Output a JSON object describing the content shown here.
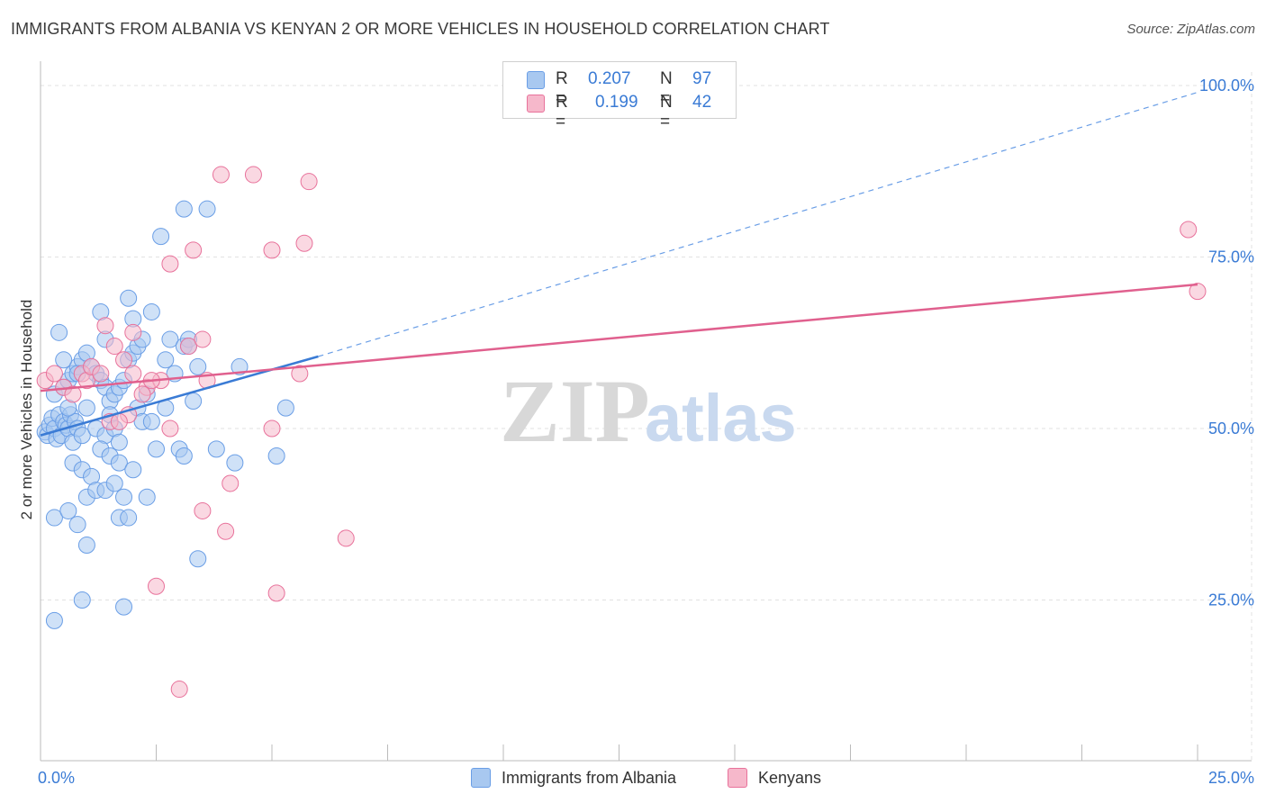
{
  "title": "IMMIGRANTS FROM ALBANIA VS KENYAN 2 OR MORE VEHICLES IN HOUSEHOLD CORRELATION CHART",
  "source": "Source: ZipAtlas.com",
  "watermark": {
    "zip": "ZIP",
    "atlas": "atlas"
  },
  "stats": [
    {
      "r_label": "R =",
      "r_value": "0.207",
      "n_label": "N =",
      "n_value": "97",
      "color": "#a8c8f0"
    },
    {
      "r_label": "R =",
      "r_value": "0.199",
      "n_label": "N =",
      "n_value": "42",
      "color": "#f6b8cb"
    }
  ],
  "legend": [
    {
      "label": "Immigrants from Albania",
      "color": "#a8c8f0"
    },
    {
      "label": "Kenyans",
      "color": "#f6b8cb"
    }
  ],
  "chart_data": {
    "type": "scatter",
    "title": "IMMIGRANTS FROM ALBANIA VS KENYAN 2 OR MORE VEHICLES IN HOUSEHOLD CORRELATION CHART",
    "xlabel": "",
    "ylabel": "2 or more Vehicles in Household",
    "xlim": [
      0,
      25
    ],
    "ylim": [
      0,
      100
    ],
    "x_tick_labels": [
      "0.0%",
      "25.0%"
    ],
    "y_ticks": [
      25,
      50,
      75,
      100
    ],
    "y_tick_labels": [
      "25.0%",
      "50.0%",
      "75.0%",
      "100.0%"
    ],
    "grid": true,
    "series": [
      {
        "name": "Immigrants from Albania",
        "color": "#6a9ee6",
        "fill": "#a8c8f0",
        "trend": {
          "x0": 0,
          "y0": 49.0,
          "x1": 6.0,
          "y1": 60.5,
          "dashed_to": [
            25,
            99.0
          ]
        },
        "points": [
          [
            0.1,
            49.5
          ],
          [
            0.15,
            49
          ],
          [
            0.2,
            50.5
          ],
          [
            0.25,
            51.5
          ],
          [
            0.3,
            50
          ],
          [
            0.35,
            48.5
          ],
          [
            0.4,
            52
          ],
          [
            0.45,
            49
          ],
          [
            0.5,
            51
          ],
          [
            0.55,
            50.5
          ],
          [
            0.6,
            50
          ],
          [
            0.65,
            52
          ],
          [
            0.7,
            48
          ],
          [
            0.75,
            51
          ],
          [
            0.8,
            50
          ],
          [
            0.3,
            55
          ],
          [
            0.4,
            64
          ],
          [
            0.5,
            56
          ],
          [
            0.6,
            57
          ],
          [
            0.7,
            58
          ],
          [
            0.8,
            59
          ],
          [
            0.9,
            60
          ],
          [
            1.0,
            61
          ],
          [
            1.1,
            59
          ],
          [
            1.2,
            58
          ],
          [
            1.3,
            57
          ],
          [
            1.4,
            56
          ],
          [
            1.5,
            54
          ],
          [
            1.6,
            55
          ],
          [
            1.7,
            56
          ],
          [
            1.8,
            57
          ],
          [
            1.9,
            60
          ],
          [
            2.0,
            61
          ],
          [
            2.1,
            62
          ],
          [
            2.2,
            63
          ],
          [
            1.3,
            67
          ],
          [
            1.9,
            69
          ],
          [
            2.4,
            67
          ],
          [
            2.0,
            66
          ],
          [
            2.7,
            60
          ],
          [
            2.8,
            63
          ],
          [
            3.1,
            62
          ],
          [
            3.2,
            63
          ],
          [
            2.9,
            58
          ],
          [
            3.4,
            59
          ],
          [
            4.3,
            59
          ],
          [
            0.6,
            53
          ],
          [
            1.0,
            53
          ],
          [
            1.5,
            52
          ],
          [
            2.1,
            53
          ],
          [
            0.9,
            49
          ],
          [
            1.2,
            50
          ],
          [
            1.4,
            49
          ],
          [
            1.6,
            50
          ],
          [
            1.7,
            48
          ],
          [
            2.2,
            51
          ],
          [
            2.4,
            51
          ],
          [
            0.7,
            45
          ],
          [
            0.9,
            44
          ],
          [
            1.1,
            43
          ],
          [
            1.3,
            47
          ],
          [
            1.5,
            46
          ],
          [
            1.7,
            45
          ],
          [
            2.0,
            44
          ],
          [
            2.5,
            47
          ],
          [
            3.0,
            47
          ],
          [
            3.1,
            46
          ],
          [
            3.8,
            47
          ],
          [
            5.1,
            46
          ],
          [
            1.0,
            40
          ],
          [
            1.2,
            41
          ],
          [
            1.4,
            41
          ],
          [
            1.6,
            42
          ],
          [
            1.8,
            40
          ],
          [
            2.3,
            40
          ],
          [
            0.3,
            37
          ],
          [
            0.6,
            38
          ],
          [
            0.8,
            36
          ],
          [
            1.0,
            33
          ],
          [
            1.7,
            37
          ],
          [
            1.9,
            37
          ],
          [
            3.4,
            31
          ],
          [
            0.9,
            25
          ],
          [
            1.8,
            24
          ],
          [
            0.3,
            22
          ],
          [
            2.6,
            78
          ],
          [
            3.1,
            82
          ],
          [
            3.6,
            82
          ],
          [
            3.2,
            62
          ],
          [
            0.5,
            60
          ],
          [
            0.8,
            58
          ],
          [
            1.4,
            63
          ],
          [
            2.3,
            55
          ],
          [
            2.7,
            53
          ],
          [
            3.3,
            54
          ],
          [
            4.2,
            45
          ],
          [
            5.3,
            53
          ]
        ]
      },
      {
        "name": "Kenyans",
        "color": "#e8729b",
        "fill": "#f6b8cb",
        "trend": {
          "x0": 0,
          "y0": 55.5,
          "x1": 25,
          "y1": 71.0
        },
        "points": [
          [
            0.1,
            57
          ],
          [
            0.3,
            58
          ],
          [
            0.5,
            56
          ],
          [
            0.7,
            55
          ],
          [
            0.9,
            58
          ],
          [
            1.0,
            57
          ],
          [
            1.1,
            59
          ],
          [
            1.3,
            58
          ],
          [
            1.4,
            65
          ],
          [
            1.6,
            62
          ],
          [
            1.8,
            60
          ],
          [
            2.0,
            58
          ],
          [
            2.3,
            56
          ],
          [
            2.6,
            57
          ],
          [
            2.8,
            50
          ],
          [
            1.5,
            51
          ],
          [
            1.9,
            52
          ],
          [
            2.2,
            55
          ],
          [
            2.4,
            57
          ],
          [
            2.0,
            64
          ],
          [
            3.2,
            62
          ],
          [
            3.5,
            63
          ],
          [
            3.6,
            57
          ],
          [
            3.3,
            76
          ],
          [
            3.9,
            87
          ],
          [
            4.6,
            87
          ],
          [
            5.0,
            76
          ],
          [
            5.7,
            77
          ],
          [
            5.8,
            86
          ],
          [
            2.8,
            74
          ],
          [
            4.1,
            42
          ],
          [
            3.5,
            38
          ],
          [
            4.0,
            35
          ],
          [
            5.0,
            50
          ],
          [
            5.6,
            58
          ],
          [
            6.6,
            34
          ],
          [
            2.5,
            27
          ],
          [
            5.1,
            26
          ],
          [
            3.0,
            12
          ],
          [
            24.8,
            79
          ],
          [
            25.0,
            70
          ],
          [
            1.7,
            51
          ]
        ]
      }
    ]
  }
}
